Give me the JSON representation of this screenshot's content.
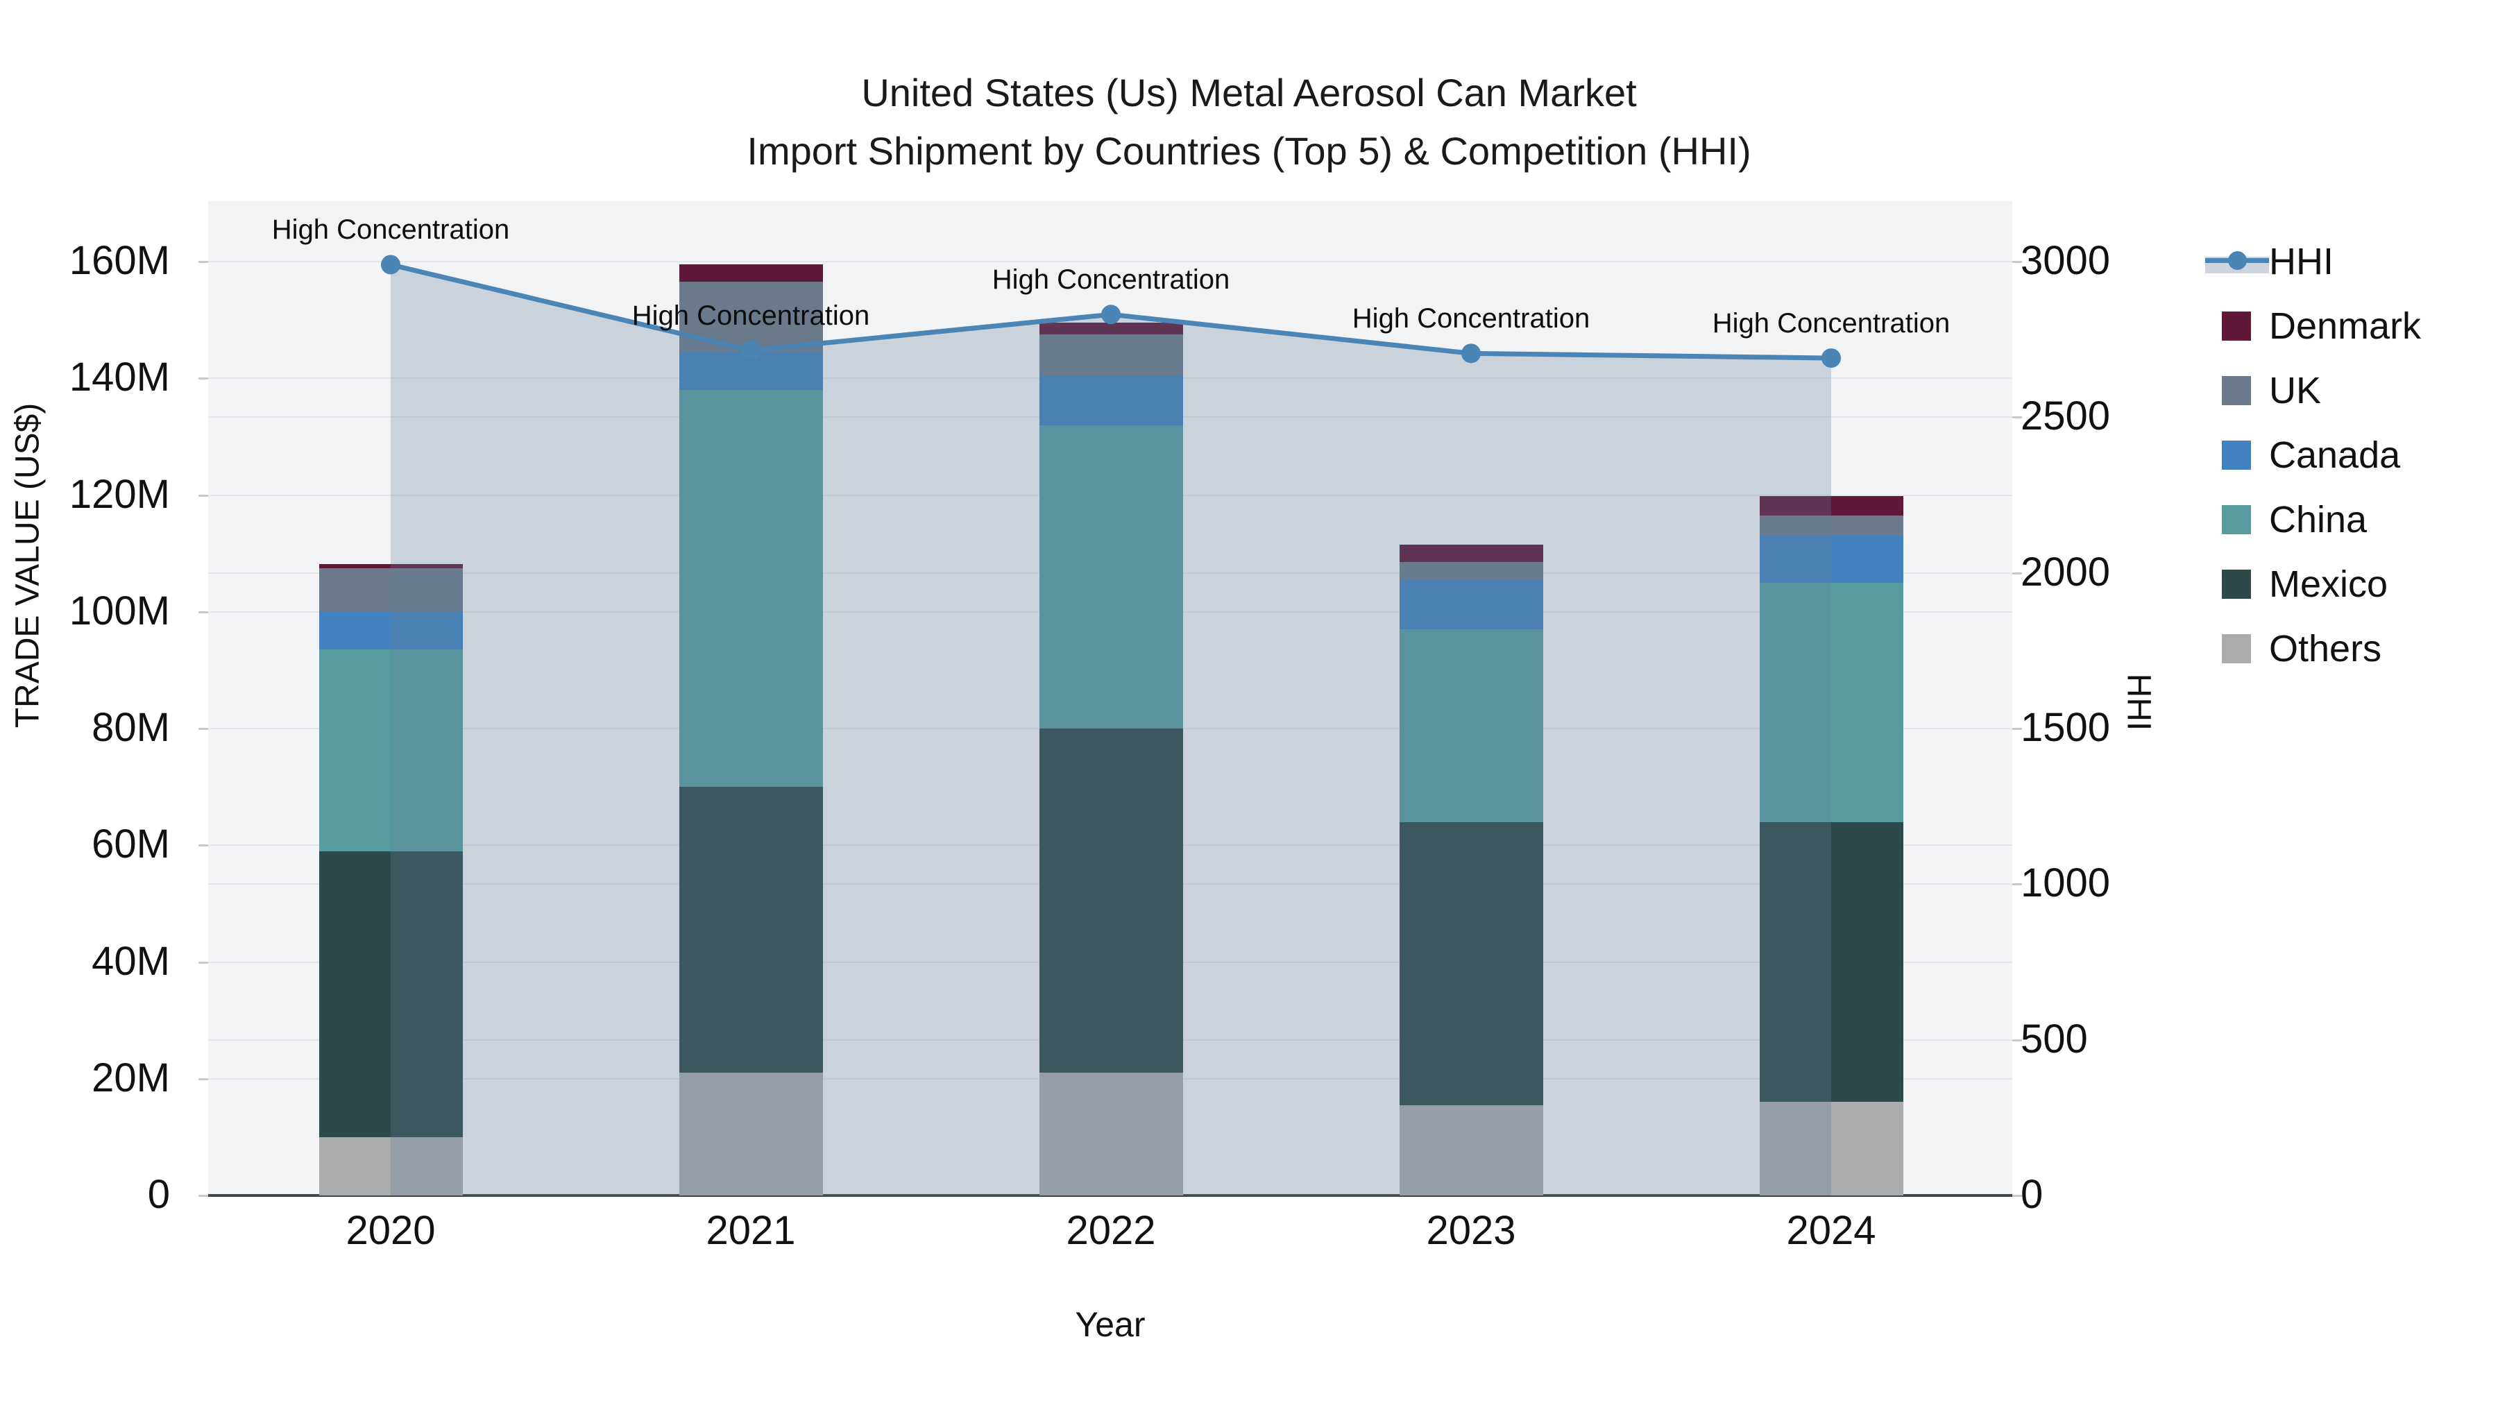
{
  "title": {
    "line1": "United States (Us) Metal Aerosol Can Market",
    "line2": "Import Shipment by Countries (Top 5) & Competition (HHI)"
  },
  "chart_data": {
    "type": "bar+line",
    "categories": [
      "2020",
      "2021",
      "2022",
      "2023",
      "2024"
    ],
    "stack_series": [
      {
        "name": "Others",
        "color": "#a9abac",
        "values": [
          10,
          21,
          21,
          15.5,
          16
        ]
      },
      {
        "name": "Mexico",
        "color": "#2b4a49",
        "values": [
          49,
          49,
          59,
          48.5,
          48
        ]
      },
      {
        "name": "China",
        "color": "#569c9e",
        "values": [
          34.5,
          68,
          52,
          33,
          41
        ]
      },
      {
        "name": "Canada",
        "color": "#4281c0",
        "values": [
          6.5,
          6.5,
          8.5,
          8.5,
          8
        ]
      },
      {
        "name": "UK",
        "color": "#6b7a8a",
        "values": [
          7.5,
          12,
          7,
          3,
          3.5
        ]
      },
      {
        "name": "Denmark",
        "color": "#5f1838",
        "values": [
          0.7,
          3,
          2,
          3,
          3.3
        ]
      }
    ],
    "line_series": {
      "name": "HHI",
      "color": "#4a85b5",
      "area_color": "rgba(100,125,155,0.28)",
      "values": [
        2990,
        2715,
        2830,
        2705,
        2690
      ],
      "axis": "right"
    },
    "annotation_text": "High Concentration",
    "left_axis": {
      "label": "TRADE VALUE (US$)",
      "tick_values": [
        0,
        20,
        40,
        60,
        80,
        100,
        120,
        140,
        160
      ],
      "tick_labels": [
        "0",
        "20M",
        "40M",
        "60M",
        "80M",
        "100M",
        "120M",
        "140M",
        "160M"
      ],
      "max": 160
    },
    "right_axis": {
      "label": "HHI",
      "tick_values": [
        0,
        500,
        1000,
        1500,
        2000,
        2500,
        3000
      ],
      "tick_labels": [
        "0",
        "500",
        "1000",
        "1500",
        "2000",
        "2500",
        "3000"
      ],
      "max": 3000
    },
    "x_label": "Year",
    "legend_order": [
      "HHI",
      "Denmark",
      "UK",
      "Canada",
      "China",
      "Mexico",
      "Others"
    ]
  }
}
